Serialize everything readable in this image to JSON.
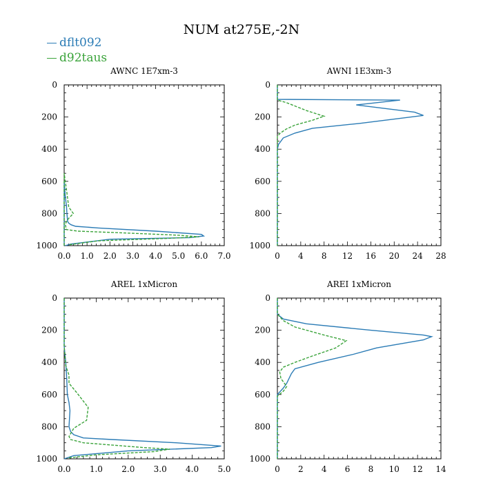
{
  "title": "NUM at275E,-2N",
  "legend": [
    {
      "label": "dflt092",
      "color": "#2a7bb5"
    },
    {
      "label": "d92taus",
      "color": "#3aa33a"
    }
  ],
  "chart_data": [
    {
      "type": "line",
      "title": "AWNC  1E7xm-3",
      "xlim": [
        0,
        7
      ],
      "ylim": [
        1000,
        0
      ],
      "xticks": [
        0,
        1,
        2,
        3,
        4,
        5,
        6,
        7
      ],
      "xticklabels": [
        "0.0",
        "1.0",
        "2.0",
        "3.0",
        "4.0",
        "5.0",
        "6.0",
        "7.0"
      ],
      "yticks": [
        0,
        200,
        400,
        600,
        800,
        1000
      ],
      "yticklabels": [
        "0",
        "200",
        "400",
        "600",
        "800",
        "1000"
      ],
      "series": [
        {
          "name": "dflt092",
          "x": [
            0,
            0,
            0.05,
            0.1,
            0.12,
            0.15,
            0.2,
            0.3,
            0.5,
            1.5,
            4.0,
            6.0,
            6.1,
            5.5,
            2.0,
            0.3,
            0.05
          ],
          "y": [
            1000,
            600,
            700,
            750,
            800,
            850,
            860,
            870,
            880,
            890,
            910,
            930,
            940,
            950,
            960,
            990,
            1000
          ]
        },
        {
          "name": "d92taus",
          "x": [
            0,
            0,
            0.1,
            0.2,
            0.4,
            0.2,
            0.1,
            0.05,
            0.1,
            0.6,
            2.5,
            5.0,
            5.9,
            4.5,
            1.5,
            0.2
          ],
          "y": [
            1000,
            550,
            650,
            760,
            800,
            830,
            850,
            870,
            900,
            910,
            920,
            935,
            945,
            955,
            970,
            995
          ]
        }
      ]
    },
    {
      "type": "line",
      "title": "AWNI  1E3xm-3",
      "xlim": [
        0,
        28
      ],
      "ylim": [
        1000,
        0
      ],
      "xticks": [
        0,
        4,
        8,
        12,
        16,
        20,
        24,
        28
      ],
      "xticklabels": [
        "0",
        "4",
        "8",
        "12",
        "16",
        "20",
        "24",
        "28"
      ],
      "yticks": [
        0,
        200,
        400,
        600,
        800,
        1000
      ],
      "yticklabels": [
        "0",
        "200",
        "400",
        "600",
        "800",
        "1000"
      ],
      "series": [
        {
          "name": "dflt092",
          "x": [
            0,
            0,
            21,
            13.5,
            23.5,
            25,
            14,
            6,
            3,
            1,
            0.2,
            0,
            0
          ],
          "y": [
            0,
            90,
            95,
            125,
            170,
            190,
            240,
            270,
            300,
            330,
            370,
            400,
            1000
          ]
        },
        {
          "name": "d92taus",
          "x": [
            0,
            0,
            1.5,
            5,
            8,
            6,
            3,
            1.5,
            0.5,
            0,
            0
          ],
          "y": [
            0,
            95,
            110,
            160,
            195,
            220,
            250,
            275,
            300,
            320,
            1000
          ]
        }
      ]
    },
    {
      "type": "line",
      "title": "AREL  1xMicron",
      "xlim": [
        0,
        5
      ],
      "ylim": [
        1000,
        0
      ],
      "xticks": [
        0,
        1,
        2,
        3,
        4,
        5
      ],
      "xticklabels": [
        "0.0",
        "1.0",
        "2.0",
        "3.0",
        "4.0",
        "5.0"
      ],
      "yticks": [
        0,
        200,
        400,
        600,
        800,
        1000
      ],
      "yticklabels": [
        "0",
        "200",
        "400",
        "600",
        "800",
        "1000"
      ],
      "series": [
        {
          "name": "dflt092",
          "x": [
            0,
            0,
            0.05,
            0.08,
            0.1,
            0.15,
            0.18,
            0.15,
            0.2,
            0.3,
            0.6,
            1.5,
            3.5,
            4.9,
            4.6,
            2.0,
            0.3,
            0
          ],
          "y": [
            0,
            300,
            400,
            500,
            600,
            650,
            700,
            800,
            830,
            850,
            870,
            880,
            900,
            920,
            930,
            950,
            980,
            1000
          ]
        },
        {
          "name": "d92taus",
          "x": [
            0,
            0,
            0.05,
            0.15,
            0.15,
            0.4,
            0.75,
            0.7,
            0.3,
            0.15,
            0.2,
            0.6,
            2.5,
            3.3,
            2.8,
            1.0,
            0.1
          ],
          "y": [
            0,
            300,
            420,
            480,
            530,
            590,
            680,
            760,
            810,
            860,
            880,
            900,
            930,
            940,
            955,
            975,
            995
          ]
        }
      ]
    },
    {
      "type": "line",
      "title": "AREI  1xMicron",
      "xlim": [
        0,
        14
      ],
      "ylim": [
        1000,
        0
      ],
      "xticks": [
        0,
        2,
        4,
        6,
        8,
        10,
        12,
        14
      ],
      "xticklabels": [
        "0",
        "2",
        "4",
        "6",
        "8",
        "10",
        "12",
        "14"
      ],
      "yticks": [
        0,
        200,
        400,
        600,
        800,
        1000
      ],
      "yticklabels": [
        "0",
        "200",
        "400",
        "600",
        "800",
        "1000"
      ],
      "series": [
        {
          "name": "dflt092",
          "x": [
            0,
            0,
            0.5,
            2.5,
            8,
            12.5,
            13.2,
            12.5,
            8.5,
            6.5,
            3.5,
            1.5,
            1.2,
            0.8,
            0.5,
            0,
            0
          ],
          "y": [
            0,
            100,
            130,
            160,
            200,
            230,
            240,
            260,
            310,
            350,
            400,
            440,
            470,
            530,
            560,
            600,
            1000
          ]
        },
        {
          "name": "d92taus",
          "x": [
            0,
            0,
            0.5,
            1.5,
            4,
            5.9,
            5.0,
            3.0,
            1.5,
            0.5,
            0.2,
            0.3,
            0.8,
            0.5,
            0,
            0
          ],
          "y": [
            0,
            100,
            140,
            180,
            230,
            265,
            310,
            360,
            400,
            430,
            460,
            500,
            550,
            580,
            610,
            1000
          ]
        }
      ]
    }
  ]
}
